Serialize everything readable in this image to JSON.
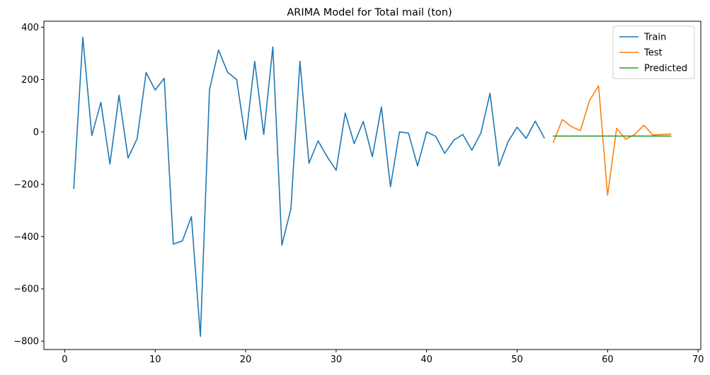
{
  "chart_data": {
    "type": "line",
    "title": "ARIMA Model for Total mail (ton)",
    "xlabel": "",
    "ylabel": "",
    "xlim": [
      -2.3,
      70.3
    ],
    "ylim": [
      -832,
      423
    ],
    "xticks": [
      0,
      10,
      20,
      30,
      40,
      50,
      60,
      70
    ],
    "yticks": [
      -800,
      -600,
      -400,
      -200,
      0,
      200,
      400
    ],
    "grid": false,
    "legend_position": "top-right",
    "series": [
      {
        "name": "Train",
        "color": "#1f77b4",
        "x": [
          1,
          2,
          3,
          4,
          5,
          6,
          7,
          8,
          9,
          10,
          11,
          12,
          13,
          14,
          15,
          16,
          17,
          18,
          19,
          20,
          21,
          22,
          23,
          24,
          25,
          26,
          27,
          28,
          29,
          30,
          31,
          32,
          33,
          34,
          35,
          36,
          37,
          38,
          39,
          40,
          41,
          42,
          43,
          44,
          45,
          46,
          47,
          48,
          49,
          50,
          51,
          52,
          53
        ],
        "values": [
          -217,
          362,
          -14,
          113,
          -123,
          140,
          -100,
          -26,
          227,
          160,
          205,
          -429,
          -417,
          -324,
          -782,
          160,
          313,
          228,
          200,
          -30,
          270,
          -10,
          325,
          -433,
          -293,
          270,
          -120,
          -34,
          -95,
          -147,
          72,
          -45,
          40,
          -95,
          95,
          -210,
          0,
          -5,
          -130,
          0,
          -17,
          -82,
          -32,
          -10,
          -70,
          -4,
          148,
          -130,
          -38,
          18,
          -25,
          41,
          -23
        ]
      },
      {
        "name": "Test",
        "color": "#ff7f0e",
        "x": [
          54,
          55,
          56,
          57,
          58,
          59,
          60,
          61,
          62,
          63,
          64,
          65,
          66,
          67
        ],
        "values": [
          -40,
          47,
          20,
          5,
          120,
          176,
          -242,
          14,
          -28,
          -10,
          25,
          -12,
          -10,
          -8
        ]
      },
      {
        "name": "Predicted",
        "color": "#2ca02c",
        "x": [
          54,
          55,
          56,
          57,
          58,
          59,
          60,
          61,
          62,
          63,
          64,
          65,
          66,
          67
        ],
        "values": [
          -16,
          -16,
          -16,
          -16,
          -16,
          -16,
          -16,
          -16,
          -16,
          -16,
          -16,
          -16,
          -16,
          -16
        ]
      }
    ]
  }
}
